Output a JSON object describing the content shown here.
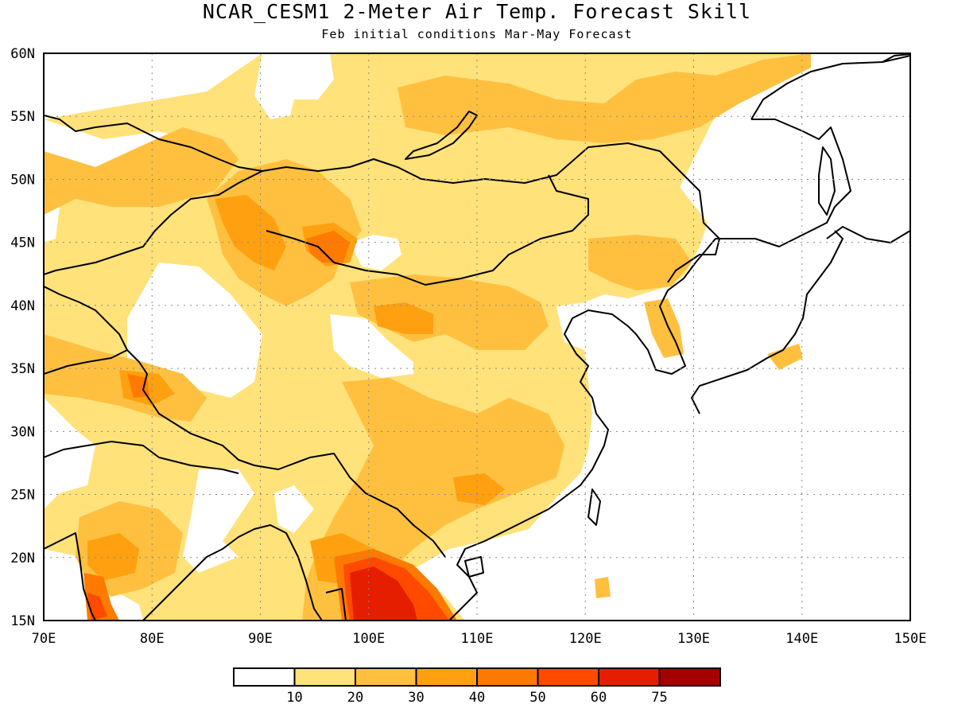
{
  "title": "NCAR_CESM1 2-Meter Air Temp. Forecast Skill",
  "subtitle": "Feb initial conditions  Mar-May Forecast",
  "map": {
    "lon_range": [
      70,
      150
    ],
    "lat_range": [
      15,
      60
    ],
    "lon_ticks": [
      "70E",
      "80E",
      "90E",
      "100E",
      "110E",
      "120E",
      "130E",
      "140E",
      "150E"
    ],
    "lat_ticks": [
      "60N",
      "55N",
      "50N",
      "45N",
      "40N",
      "35N",
      "30N",
      "25N",
      "20N",
      "15N"
    ],
    "grid": "dotted"
  },
  "colorbar": {
    "levels": [
      "10",
      "20",
      "30",
      "40",
      "50",
      "60",
      "75"
    ],
    "colors": [
      "#ffffff",
      "#ffe27a",
      "#ffc040",
      "#ffa010",
      "#ff7a00",
      "#ff4a00",
      "#e61e00",
      "#a50000"
    ]
  }
}
